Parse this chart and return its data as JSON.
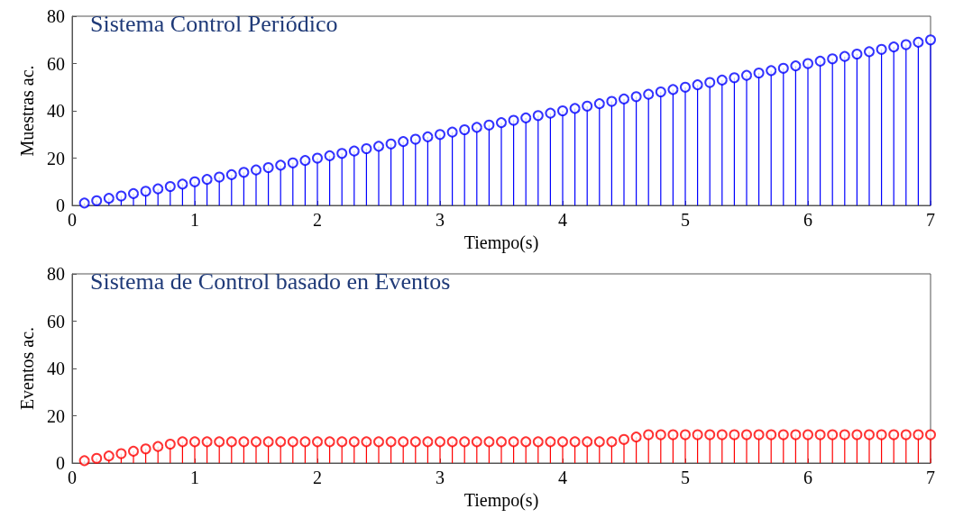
{
  "chart_data": [
    {
      "type": "lollipop",
      "title": "Sistema Control Periódico",
      "xlabel": "Tiempo(s)",
      "ylabel": "Muestras ac.",
      "color": "#0000ff",
      "marker": "circle",
      "xlim": [
        0,
        7
      ],
      "xticks": [
        0,
        1,
        2,
        3,
        4,
        5,
        6,
        7
      ],
      "ylim": [
        0,
        80
      ],
      "yticks": [
        0,
        20,
        40,
        60,
        80
      ],
      "x": [
        0.1,
        0.2,
        0.3,
        0.4,
        0.5,
        0.6,
        0.7,
        0.8,
        0.9,
        1.0,
        1.1,
        1.2,
        1.3,
        1.4,
        1.5,
        1.6,
        1.7,
        1.8,
        1.9,
        2.0,
        2.1,
        2.2,
        2.3,
        2.4,
        2.5,
        2.6,
        2.7,
        2.8,
        2.9,
        3.0,
        3.1,
        3.2,
        3.3,
        3.4,
        3.5,
        3.6,
        3.7,
        3.8,
        3.9,
        4.0,
        4.1,
        4.2,
        4.3,
        4.4,
        4.5,
        4.6,
        4.7,
        4.8,
        4.9,
        5.0,
        5.1,
        5.2,
        5.3,
        5.4,
        5.5,
        5.6,
        5.7,
        5.8,
        5.9,
        6.0,
        6.1,
        6.2,
        6.3,
        6.4,
        6.5,
        6.6,
        6.7,
        6.8,
        6.9,
        7.0
      ],
      "values": [
        1,
        2,
        3,
        4,
        5,
        6,
        7,
        8,
        9,
        10,
        11,
        12,
        13,
        14,
        15,
        16,
        17,
        18,
        19,
        20,
        21,
        22,
        23,
        24,
        25,
        26,
        27,
        28,
        29,
        30,
        31,
        32,
        33,
        34,
        35,
        36,
        37,
        38,
        39,
        40,
        41,
        42,
        43,
        44,
        45,
        46,
        47,
        48,
        49,
        50,
        51,
        52,
        53,
        54,
        55,
        56,
        57,
        58,
        59,
        60,
        61,
        62,
        63,
        64,
        65,
        66,
        67,
        68,
        69,
        70
      ]
    },
    {
      "type": "lollipop",
      "title": "Sistema de Control basado en Eventos",
      "xlabel": "Tiempo(s)",
      "ylabel": "Eventos ac.",
      "color": "#ff0000",
      "marker": "circle",
      "xlim": [
        0,
        7
      ],
      "xticks": [
        0,
        1,
        2,
        3,
        4,
        5,
        6,
        7
      ],
      "ylim": [
        0,
        80
      ],
      "yticks": [
        0,
        20,
        40,
        60,
        80
      ],
      "x": [
        0.1,
        0.2,
        0.3,
        0.4,
        0.5,
        0.6,
        0.7,
        0.8,
        0.9,
        1.0,
        1.1,
        1.2,
        1.3,
        1.4,
        1.5,
        1.6,
        1.7,
        1.8,
        1.9,
        2.0,
        2.1,
        2.2,
        2.3,
        2.4,
        2.5,
        2.6,
        2.7,
        2.8,
        2.9,
        3.0,
        3.1,
        3.2,
        3.3,
        3.4,
        3.5,
        3.6,
        3.7,
        3.8,
        3.9,
        4.0,
        4.1,
        4.2,
        4.3,
        4.4,
        4.5,
        4.6,
        4.7,
        4.8,
        4.9,
        5.0,
        5.1,
        5.2,
        5.3,
        5.4,
        5.5,
        5.6,
        5.7,
        5.8,
        5.9,
        6.0,
        6.1,
        6.2,
        6.3,
        6.4,
        6.5,
        6.6,
        6.7,
        6.8,
        6.9,
        7.0
      ],
      "values": [
        1,
        2,
        3,
        4,
        5,
        6,
        7,
        8,
        9,
        9,
        9,
        9,
        9,
        9,
        9,
        9,
        9,
        9,
        9,
        9,
        9,
        9,
        9,
        9,
        9,
        9,
        9,
        9,
        9,
        9,
        9,
        9,
        9,
        9,
        9,
        9,
        9,
        9,
        9,
        9,
        9,
        9,
        9,
        9,
        10,
        11,
        12,
        12,
        12,
        12,
        12,
        12,
        12,
        12,
        12,
        12,
        12,
        12,
        12,
        12,
        12,
        12,
        12,
        12,
        12,
        12,
        12,
        12,
        12,
        12
      ]
    }
  ]
}
